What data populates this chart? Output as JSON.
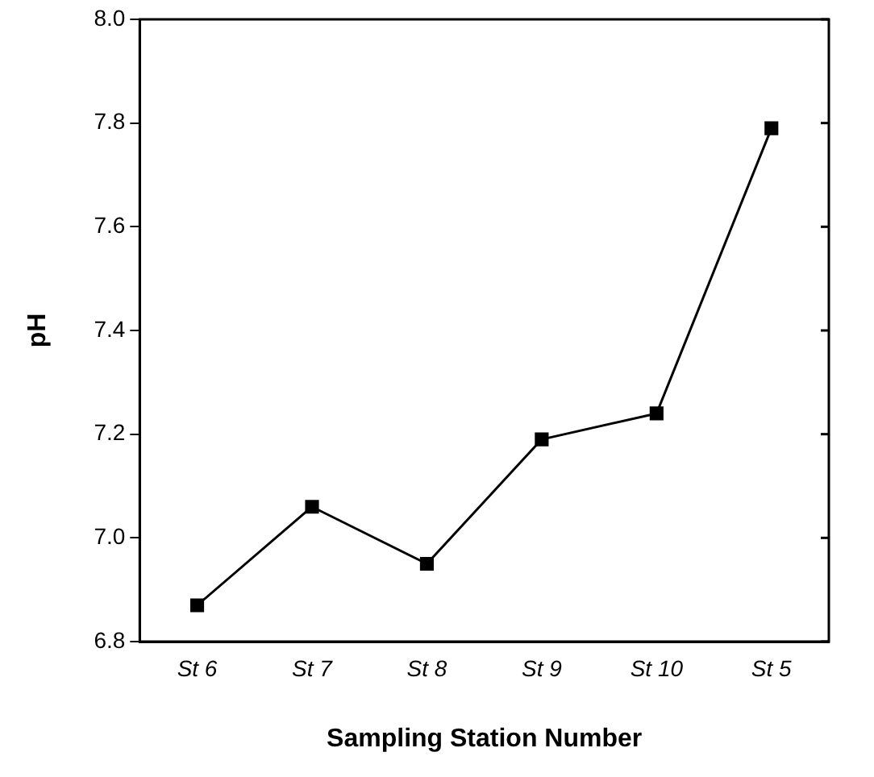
{
  "chart_data": {
    "type": "line",
    "xlabel": "Sampling Station Number",
    "ylabel": "pH",
    "categories": [
      "St 6",
      "St 7",
      "St 8",
      "St 9",
      "St 10",
      "St 5"
    ],
    "series": [
      {
        "color": "#000000",
        "values": [
          6.87,
          7.06,
          6.95,
          7.19,
          7.24,
          7.79
        ]
      }
    ],
    "ylim": [
      6.8,
      8.0
    ],
    "yticks": [
      {
        "value": 6.8,
        "label": "6.8"
      },
      {
        "value": 7.0,
        "label": "7.0"
      },
      {
        "value": 7.2,
        "label": "7.2"
      },
      {
        "value": 7.4,
        "label": "7.4"
      },
      {
        "value": 7.6,
        "label": "7.6"
      },
      {
        "value": 7.8,
        "label": "7.8"
      },
      {
        "value": 8.0,
        "label": "8.0"
      }
    ],
    "grid": false,
    "legend": false,
    "marker": "square",
    "line_style": "solid"
  }
}
